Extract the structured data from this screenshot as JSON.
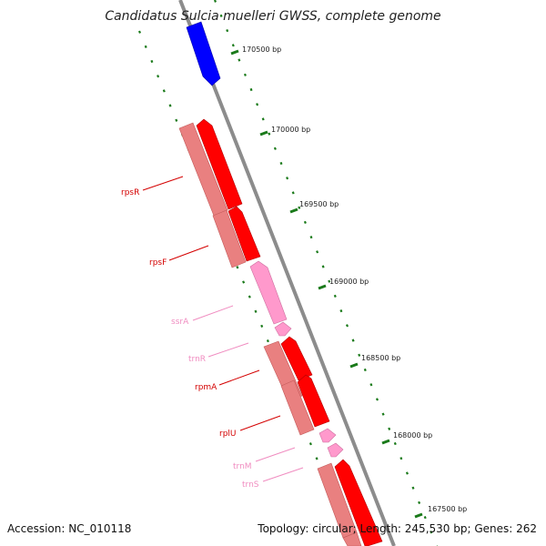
{
  "title": "Candidatus Sulcia muelleri GWSS, complete genome",
  "footer": {
    "accession": "Accession: NC_010118",
    "summary": "Topology: circular; Length: 245,530 bp; Genes: 262"
  },
  "colors": {
    "backbone": "#8c8c8c",
    "tick": "#1a7a1a",
    "gene_red": "#ff0000",
    "gene_red_dark": "#b30000",
    "gene_salmon": "#e98080",
    "gene_pink": "#ff99cc",
    "gene_blue": "#0000ff",
    "label_red": "#d40000",
    "label_pink": "#f08cc0"
  },
  "ticks": [
    {
      "label": "170500 bp"
    },
    {
      "label": "170000 bp"
    },
    {
      "label": "169500 bp"
    },
    {
      "label": "169000 bp"
    },
    {
      "label": "168500 bp"
    },
    {
      "label": "168000 bp"
    },
    {
      "label": "167500 bp"
    }
  ],
  "gene_labels": [
    {
      "text": "rpsR",
      "color": "red"
    },
    {
      "text": "rpsF",
      "color": "red"
    },
    {
      "text": "ssrA",
      "color": "pink"
    },
    {
      "text": "trnR",
      "color": "pink"
    },
    {
      "text": "rpmA",
      "color": "red"
    },
    {
      "text": "rplU",
      "color": "red"
    },
    {
      "text": "trnM",
      "color": "pink"
    },
    {
      "text": "trnS",
      "color": "pink"
    }
  ]
}
